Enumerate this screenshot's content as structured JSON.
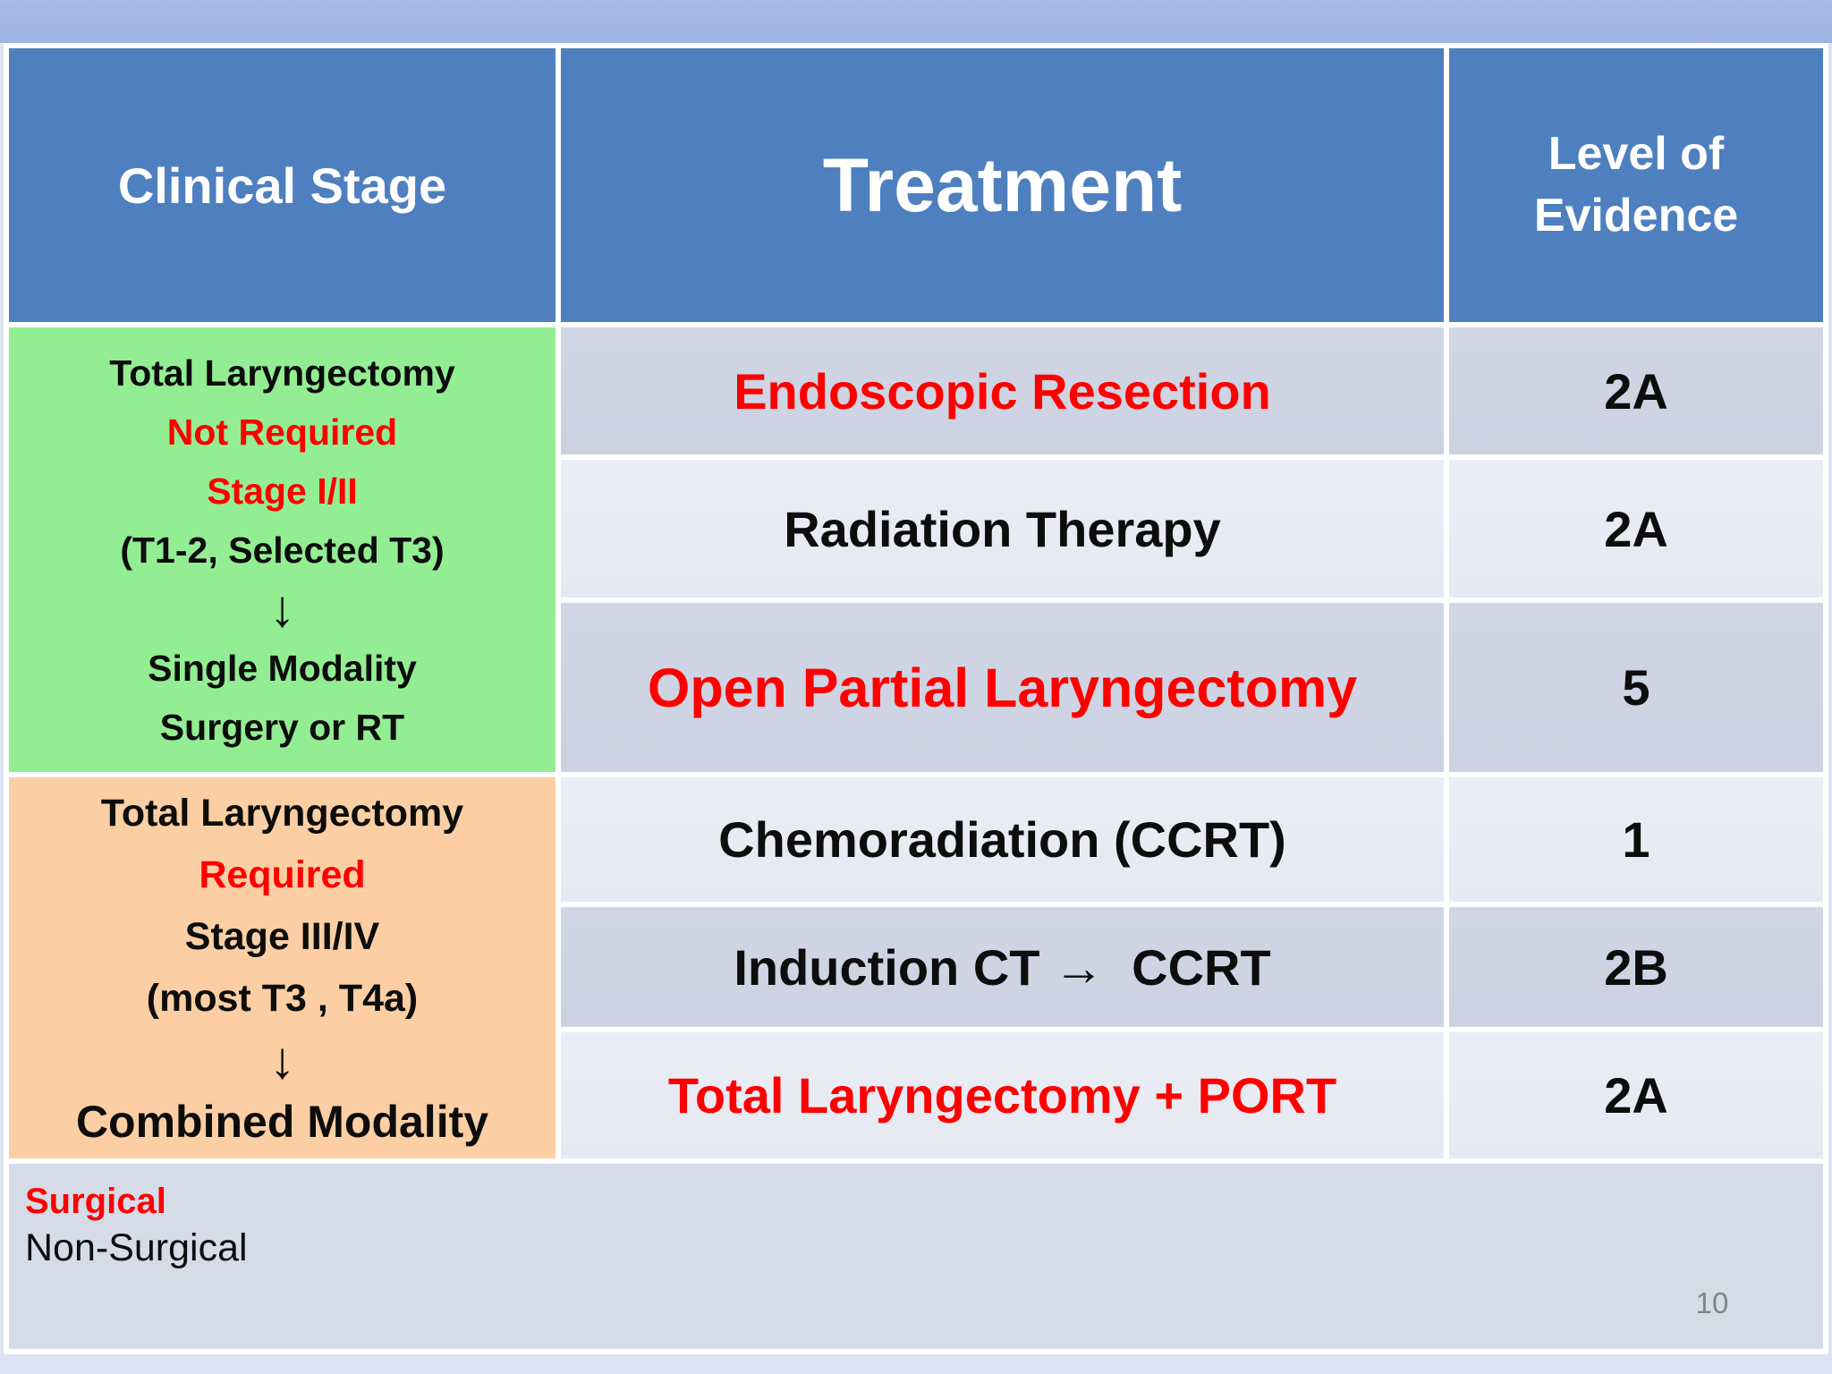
{
  "page": {
    "number": "10"
  },
  "colors": {
    "header_blue": "#4E80BF",
    "row_dark": "#CCD2E1",
    "row_light": "#E7E9F2",
    "legend_bg": "#D6DBE8",
    "stage_early_bg": "#93EE93",
    "stage_adv_bg": "#FBCFA3",
    "top_strip": "#9DB3E1",
    "page_bg": "#DCE3F3",
    "red": "#FF0000",
    "text_black": "#0D0D0D",
    "page_gray": "#7F858F"
  },
  "table": {
    "headers": [
      {
        "label": "Clinical Stage"
      },
      {
        "label": "Treatment"
      },
      {
        "label": "Level of Evidence"
      }
    ],
    "stage_groups": [
      {
        "name": "total-laryngectomy-not-required",
        "lines": [
          {
            "text": "Total Laryngectomy",
            "color": "black"
          },
          {
            "text": "Not Required",
            "color": "red"
          },
          {
            "text": "Stage I/II",
            "color": "red"
          },
          {
            "text": "(T1-2, Selected T3)",
            "color": "black"
          },
          {
            "text": "↓",
            "color": "black"
          },
          {
            "text": "Single Modality",
            "color": "black"
          },
          {
            "text": "Surgery or RT",
            "color": "black"
          }
        ]
      },
      {
        "name": "total-laryngectomy-required",
        "lines": [
          {
            "text": "Total Laryngectomy",
            "color": "black"
          },
          {
            "text": "Required",
            "color": "red"
          },
          {
            "text": "Stage III/IV",
            "color": "black"
          },
          {
            "text": "(most T3 , T4a)",
            "color": "black"
          },
          {
            "text": "↓",
            "color": "black"
          },
          {
            "text": "Combined Modality",
            "color": "black"
          }
        ]
      }
    ],
    "rows": [
      {
        "treatment": "Endoscopic Resection",
        "color": "red",
        "evidence": "2A"
      },
      {
        "treatment": "Radiation Therapy",
        "color": "black",
        "evidence": "2A"
      },
      {
        "treatment": "Open Partial Laryngectomy",
        "color": "red",
        "evidence": "5"
      },
      {
        "treatment": "Chemoradiation (CCRT)",
        "color": "black",
        "evidence": "1"
      },
      {
        "treatment": "Induction CT →  CCRT",
        "color": "black",
        "evidence": "2B"
      },
      {
        "treatment": "Total Laryngectomy + PORT",
        "color": "red",
        "evidence": "2A"
      }
    ],
    "legend": [
      {
        "text": "Surgical",
        "color": "red"
      },
      {
        "text": "Non-Surgical",
        "color": "black"
      }
    ]
  }
}
